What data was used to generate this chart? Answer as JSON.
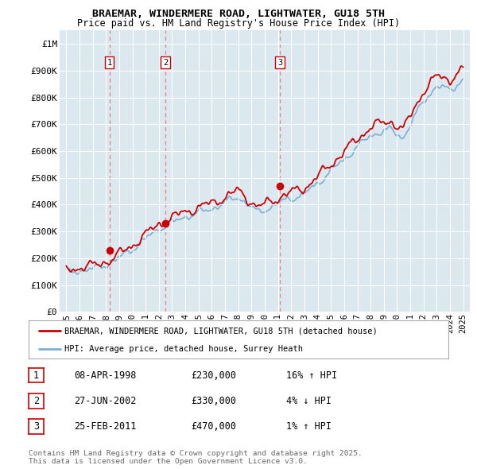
{
  "title": "BRAEMAR, WINDERMERE ROAD, LIGHTWATER, GU18 5TH",
  "subtitle": "Price paid vs. HM Land Registry's House Price Index (HPI)",
  "legend_label_red": "BRAEMAR, WINDERMERE ROAD, LIGHTWATER, GU18 5TH (detached house)",
  "legend_label_blue": "HPI: Average price, detached house, Surrey Heath",
  "sale_years": [
    1998.27,
    2002.49,
    2011.15
  ],
  "sale_prices": [
    230000,
    330000,
    470000
  ],
  "sale_labels": [
    "1",
    "2",
    "3"
  ],
  "table_rows": [
    {
      "num": "1",
      "date": "08-APR-1998",
      "price": "£230,000",
      "hpi": "16% ↑ HPI"
    },
    {
      "num": "2",
      "date": "27-JUN-2002",
      "price": "£330,000",
      "hpi": "4% ↓ HPI"
    },
    {
      "num": "3",
      "date": "25-FEB-2011",
      "price": "£470,000",
      "hpi": "1% ↑ HPI"
    }
  ],
  "footer": "Contains HM Land Registry data © Crown copyright and database right 2025.\nThis data is licensed under the Open Government Licence v3.0.",
  "ylim": [
    0,
    1050000
  ],
  "xlim": [
    1994.5,
    2025.5
  ],
  "yticks": [
    0,
    100000,
    200000,
    300000,
    400000,
    500000,
    600000,
    700000,
    800000,
    900000,
    1000000
  ],
  "ytick_labels": [
    "£0",
    "£100K",
    "£200K",
    "£300K",
    "£400K",
    "£500K",
    "£600K",
    "£700K",
    "£800K",
    "£900K",
    "£1M"
  ],
  "xticks": [
    1995,
    1996,
    1997,
    1998,
    1999,
    2000,
    2001,
    2002,
    2003,
    2004,
    2005,
    2006,
    2007,
    2008,
    2009,
    2010,
    2011,
    2012,
    2013,
    2014,
    2015,
    2016,
    2017,
    2018,
    2019,
    2020,
    2021,
    2022,
    2023,
    2024,
    2025
  ],
  "red_color": "#cc0000",
  "blue_color": "#7ab0d4",
  "vline_color": "#e88080",
  "plot_bg": "#dce8f0"
}
